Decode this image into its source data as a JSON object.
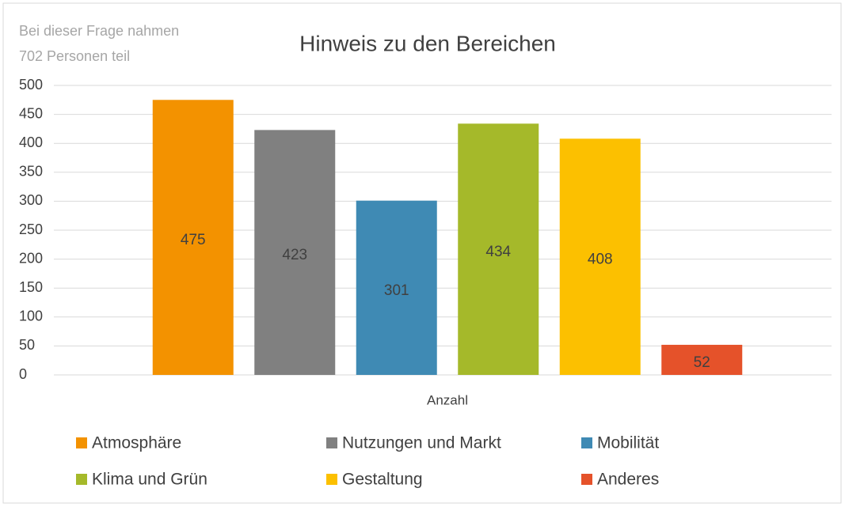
{
  "chart_data": {
    "type": "bar",
    "title": "Hinweis zu den Bereichen",
    "annotation": [
      "Bei dieser Frage nahmen",
      "702 Personen teil"
    ],
    "categories": [
      "Anzahl"
    ],
    "series": [
      {
        "name": "Atmosphäre",
        "color": "#f39200",
        "values": [
          475
        ]
      },
      {
        "name": "Nutzungen und Markt",
        "color": "#808080",
        "values": [
          423
        ]
      },
      {
        "name": "Mobilität",
        "color": "#3f8ab4",
        "values": [
          301
        ]
      },
      {
        "name": "Klima und Grün",
        "color": "#a5b92a",
        "values": [
          434
        ]
      },
      {
        "name": "Gestaltung",
        "color": "#fcc000",
        "values": [
          408
        ]
      },
      {
        "name": "Anderes",
        "color": "#e5522a",
        "values": [
          52
        ]
      }
    ],
    "ylim": [
      0,
      500
    ],
    "yticks": [
      0,
      50,
      100,
      150,
      200,
      250,
      300,
      350,
      400,
      450,
      500
    ],
    "grid": true,
    "legend": "bottom"
  }
}
